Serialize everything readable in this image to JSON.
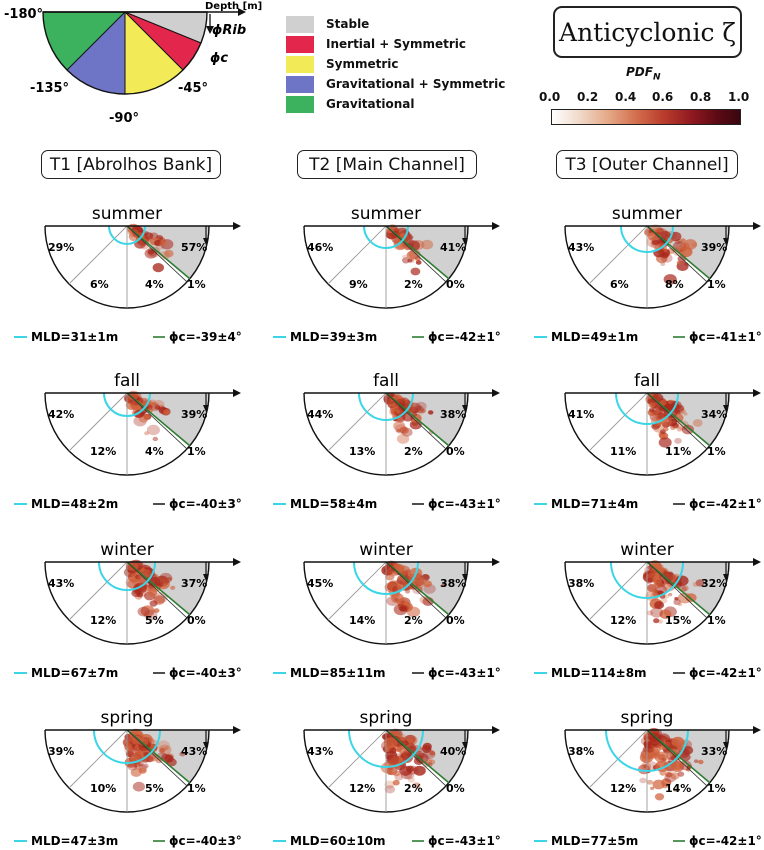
{
  "key_diagram": {
    "depth_label": "Depth [m]",
    "angle_labels": [
      "-180°",
      "-135°",
      "-90°",
      "-45°"
    ],
    "phi_rib_label": "ϕRib",
    "phi_c_label": "ϕc",
    "colors": {
      "gravitational": "#3cb25e",
      "grav_sym": "#6e74c6",
      "symmetric": "#f2ea57",
      "inertial_sym": "#e3264b",
      "stable": "#c9c9c9"
    }
  },
  "legend": [
    {
      "label": "Stable",
      "color": "#d0d0d0"
    },
    {
      "label": "Inertial + Symmetric",
      "color": "#e3264b"
    },
    {
      "label": "Symmetric",
      "color": "#f2ea57"
    },
    {
      "label": "Gravitational + Symmetric",
      "color": "#6e74c6"
    },
    {
      "label": "Gravitational",
      "color": "#3cb25e"
    }
  ],
  "title_box": "Anticyclonic ζ",
  "colorbar": {
    "title": "PDFN",
    "ticks": [
      "0.0",
      "0.2",
      "0.4",
      "0.6",
      "0.8",
      "1.0"
    ],
    "range": [
      0,
      1
    ]
  },
  "columns": [
    "T1 [Abrolhos Bank]",
    "T2 [Main Channel]",
    "T3 [Outer Channel]"
  ],
  "seasons": [
    "summer",
    "fall",
    "winter",
    "spring"
  ],
  "chart_data": {
    "type": "polar-half-pdf",
    "columns": [
      "T1 [Abrolhos Bank]",
      "T2 [Main Channel]",
      "T3 [Outer Channel]"
    ],
    "rows": [
      "summer",
      "fall",
      "winter",
      "spring"
    ],
    "panels": [
      [
        {
          "season": "summer",
          "percentages": {
            "left": "29%",
            "lower_left": "6%",
            "lower_right": "4%",
            "edge": "1%",
            "stable": "57%"
          },
          "mld": "MLD=31±1m",
          "phic": "ϕc=-39±4°"
        },
        {
          "season": "summer",
          "percentages": {
            "left": "46%",
            "lower_left": "9%",
            "lower_right": "2%",
            "edge": "0%",
            "stable": "41%"
          },
          "mld": "MLD=39±3m",
          "phic": "ϕc=-42±1°"
        },
        {
          "season": "summer",
          "percentages": {
            "left": "43%",
            "lower_left": "6%",
            "lower_right": "8%",
            "edge": "1%",
            "stable": "39%"
          },
          "mld": "MLD=49±1m",
          "phic": "ϕc=-41±1°"
        }
      ],
      [
        {
          "season": "fall",
          "percentages": {
            "left": "42%",
            "lower_left": "12%",
            "lower_right": "4%",
            "edge": "1%",
            "stable": "39%"
          },
          "mld": "MLD=48±2m",
          "phic": "ϕc=-40±3°"
        },
        {
          "season": "fall",
          "percentages": {
            "left": "44%",
            "lower_left": "13%",
            "lower_right": "2%",
            "edge": "0%",
            "stable": "38%"
          },
          "mld": "MLD=58±4m",
          "phic": "ϕc=-43±1°"
        },
        {
          "season": "fall",
          "percentages": {
            "left": "41%",
            "lower_left": "11%",
            "lower_right": "11%",
            "edge": "1%",
            "stable": "34%"
          },
          "mld": "MLD=71±4m",
          "phic": "ϕc=-42±1°"
        }
      ],
      [
        {
          "season": "winter",
          "percentages": {
            "left": "43%",
            "lower_left": "12%",
            "lower_right": "5%",
            "edge": "0%",
            "stable": "37%"
          },
          "mld": "MLD=67±7m",
          "phic": "ϕc=-40±3°"
        },
        {
          "season": "winter",
          "percentages": {
            "left": "45%",
            "lower_left": "14%",
            "lower_right": "2%",
            "edge": "0%",
            "stable": "38%"
          },
          "mld": "MLD=85±11m",
          "phic": "ϕc=-43±1°"
        },
        {
          "season": "winter",
          "percentages": {
            "left": "38%",
            "lower_left": "12%",
            "lower_right": "15%",
            "edge": "1%",
            "stable": "32%"
          },
          "mld": "MLD=114±8m",
          "phic": "ϕc=-42±1°"
        }
      ],
      [
        {
          "season": "spring",
          "percentages": {
            "left": "39%",
            "lower_left": "10%",
            "lower_right": "5%",
            "edge": "1%",
            "stable": "43%"
          },
          "mld": "MLD=47±3m",
          "phic": "ϕc=-40±3°"
        },
        {
          "season": "spring",
          "percentages": {
            "left": "43%",
            "lower_left": "12%",
            "lower_right": "2%",
            "edge": "0%",
            "stable": "40%"
          },
          "mld": "MLD=60±10m",
          "phic": "ϕc=-43±1°"
        },
        {
          "season": "spring",
          "percentages": {
            "left": "38%",
            "lower_left": "12%",
            "lower_right": "14%",
            "edge": "1%",
            "stable": "33%"
          },
          "mld": "MLD=77±5m",
          "phic": "ϕc=-42±1°"
        }
      ]
    ],
    "phi_c_line_color": "#2e7d32",
    "mld_line_color": "#3ad6e6"
  }
}
